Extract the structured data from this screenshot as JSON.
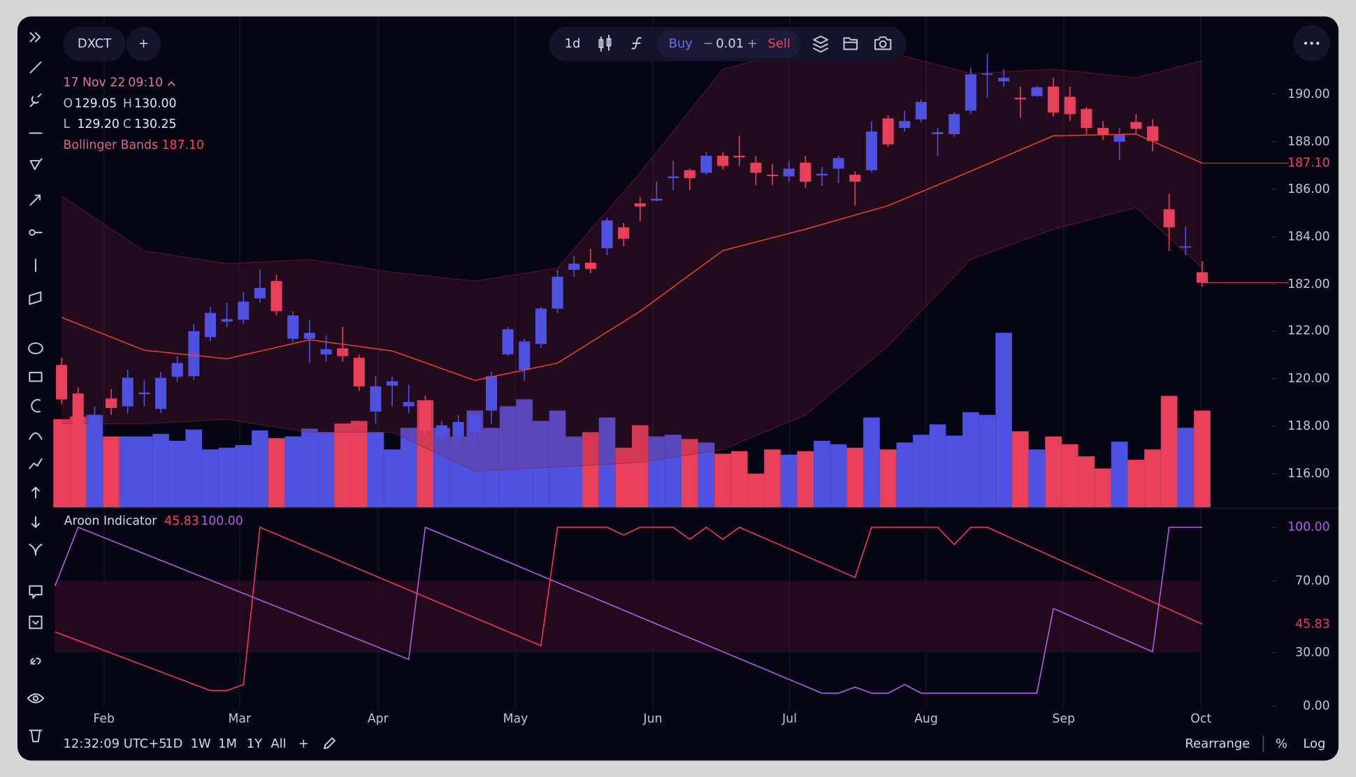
{
  "toolbar": {
    "symbol": "DXCT",
    "add": "+",
    "interval": "1d",
    "buy": "Buy",
    "minus": "−",
    "quantity": "0.01",
    "plus": "+",
    "sell": "Sell"
  },
  "legend": {
    "date": "17 Nov 22",
    "time": "09:10",
    "open_label": "O",
    "open": "129.05",
    "high_label": "H",
    "high": "130.00",
    "low_label": "L",
    "low": "129.20",
    "close_label": "C",
    "close": "130.25"
  },
  "bottom_bar": {
    "clock": "12:32:09 UTC+5",
    "ranges": [
      "1D",
      "1W",
      "1M",
      "1Y",
      "All"
    ],
    "add": "+",
    "rearrange": "Rearrange",
    "percent": "%",
    "log": "Log"
  },
  "chart_data": [
    {
      "type": "candlestick",
      "up_color": "#4f52e0",
      "down_color": "#e8405a",
      "xlim": [
        -0.42,
        73.17
      ],
      "ylim": [
        172.62,
        193.27
      ],
      "yticks": [
        {
          "value": 190,
          "label": "190.00"
        },
        {
          "value": 188,
          "label": "188.00"
        },
        {
          "value": 186,
          "label": "186.00"
        },
        {
          "value": 184,
          "label": "184.00"
        },
        {
          "value": 182,
          "label": "182.00"
        }
      ],
      "y2lim": [
        114.58,
        135.24
      ],
      "y2ticks": [
        {
          "value": 122,
          "label": "122.00"
        },
        {
          "value": 120,
          "label": "120.00"
        },
        {
          "value": 118,
          "label": "118.00"
        },
        {
          "value": 116,
          "label": "116.00"
        }
      ],
      "x": [
        0,
        1,
        2,
        3,
        4,
        5,
        6,
        7,
        8,
        9,
        10,
        11,
        12,
        13,
        14,
        15,
        16,
        17,
        18,
        19,
        20,
        21,
        22,
        23,
        24,
        25,
        26,
        27,
        28,
        29,
        30,
        31,
        32,
        33,
        34,
        35,
        36,
        37,
        38,
        39,
        40,
        41,
        42,
        43,
        44,
        45,
        46,
        47,
        48,
        49,
        50,
        51,
        52,
        53,
        54,
        55,
        56,
        57,
        58,
        59,
        60,
        61,
        62,
        63,
        64,
        65,
        66,
        67,
        68,
        69
      ],
      "open": [
        178.61,
        177.41,
        175.78,
        177.2,
        176.87,
        177.38,
        176.76,
        178.11,
        178.14,
        179.78,
        180.43,
        180.51,
        181.41,
        182.14,
        179.71,
        179.71,
        179.05,
        179.31,
        178.91,
        176.65,
        177.74,
        176.87,
        177.12,
        175.6,
        175.6,
        175.78,
        176.69,
        179.05,
        178.4,
        179.49,
        180.98,
        182.61,
        182.91,
        183.52,
        184.4,
        185.41,
        185.52,
        186.47,
        186.8,
        186.69,
        187.41,
        187.41,
        187.12,
        186.61,
        186.54,
        187.12,
        186.58,
        186.87,
        186.61,
        186.8,
        188.98,
        188.58,
        188.94,
        188.32,
        188.32,
        189.31,
        190.83,
        190.54,
        189.85,
        189.92,
        190.32,
        189.89,
        189.38,
        188.58,
        188.0,
        188.83,
        188.65,
        185.16,
        183.56,
        182.51
      ],
      "high": [
        178.91,
        177.67,
        176.87,
        177.6,
        178.4,
        177.96,
        178.32,
        178.98,
        180.32,
        181.05,
        181.23,
        181.67,
        182.61,
        182.4,
        180.87,
        180.51,
        179.85,
        180.21,
        179.05,
        178.14,
        178.11,
        177.78,
        177.31,
        176.25,
        176.51,
        176.58,
        178.32,
        180.21,
        179.71,
        181.05,
        182.61,
        183.2,
        183.49,
        184.8,
        184.58,
        185.67,
        186.32,
        187.2,
        186.87,
        187.56,
        187.56,
        188.25,
        187.41,
        187.05,
        187.2,
        187.41,
        186.94,
        187.41,
        186.76,
        188.87,
        189.12,
        189.31,
        189.78,
        188.58,
        189.23,
        191.12,
        191.71,
        191.05,
        190.32,
        190.36,
        190.69,
        190.32,
        189.45,
        188.87,
        188.58,
        189.16,
        188.94,
        185.81,
        184.43,
        182.98
      ],
      "low": [
        176.94,
        175.6,
        175.41,
        176.51,
        176.58,
        176.87,
        176.58,
        177.89,
        177.96,
        179.6,
        180.21,
        180.32,
        181.23,
        180.69,
        179.56,
        178.69,
        178.76,
        178.76,
        177.52,
        176.14,
        176.87,
        176.58,
        175.6,
        175.41,
        175.34,
        175.2,
        176.14,
        178.98,
        177.96,
        179.34,
        180.8,
        182.32,
        182.47,
        183.23,
        183.6,
        184.65,
        185.49,
        185.96,
        185.96,
        186.61,
        186.83,
        186.98,
        186.18,
        186.18,
        186.32,
        186.07,
        186.14,
        186.25,
        185.31,
        186.69,
        187.78,
        188.43,
        188.8,
        187.41,
        188.21,
        189.16,
        189.85,
        190.32,
        189.01,
        189.89,
        189.05,
        188.87,
        188.32,
        188.07,
        187.23,
        188.32,
        187.6,
        183.41,
        183.23,
        181.89
      ],
      "close": [
        177.16,
        175.78,
        176.51,
        176.8,
        178.07,
        177.45,
        178.07,
        178.69,
        180.03,
        180.8,
        180.54,
        181.27,
        181.85,
        180.87,
        180.69,
        179.96,
        179.27,
        178.98,
        177.71,
        177.71,
        177.92,
        177.05,
        175.85,
        176.07,
        176.21,
        176.51,
        178.14,
        180.11,
        179.6,
        180.98,
        182.32,
        182.87,
        182.65,
        184.69,
        183.92,
        185.27,
        185.6,
        186.54,
        186.47,
        187.41,
        186.98,
        187.34,
        186.69,
        186.58,
        186.87,
        186.32,
        186.65,
        187.31,
        186.32,
        188.43,
        187.89,
        188.87,
        189.67,
        188.4,
        189.16,
        190.83,
        190.87,
        190.69,
        189.78,
        190.29,
        189.23,
        189.16,
        188.58,
        188.29,
        188.32,
        188.54,
        188.03,
        184.4,
        183.6,
        182.07
      ],
      "volume": [
        102,
        105,
        107,
        82,
        82,
        82,
        85,
        77,
        90,
        67,
        69,
        72,
        89,
        80,
        82,
        91,
        87,
        97,
        100,
        87,
        67,
        92,
        124,
        92,
        82,
        112,
        92,
        117,
        125,
        100,
        112,
        82,
        87,
        104,
        69,
        95,
        82,
        84,
        79,
        75,
        62,
        65,
        39,
        67,
        61,
        65,
        77,
        73,
        69,
        104,
        67,
        75,
        84,
        96,
        83,
        110,
        107,
        202,
        88,
        67,
        82,
        73,
        59,
        45,
        76,
        55,
        67,
        129,
        92,
        112
      ],
      "bollinger": {
        "name": "Bollinger Bands",
        "color": "#f0402e",
        "band_color": "#8a1e3c",
        "x": [
          0,
          5,
          10,
          15,
          20,
          25,
          30,
          35,
          40,
          45,
          50,
          55,
          60,
          65,
          69
        ],
        "upper": [
          185.71,
          183.41,
          182.87,
          183.05,
          182.51,
          182.14,
          182.69,
          186.69,
          191.05,
          191.96,
          191.78,
          190.87,
          191.05,
          190.69,
          191.41
        ],
        "values": [
          180.61,
          179.23,
          178.87,
          179.67,
          179.2,
          177.96,
          178.69,
          180.87,
          183.42,
          184.32,
          185.31,
          186.76,
          188.25,
          188.32,
          187.1
        ],
        "value_labels": [
          null,
          null,
          null,
          null,
          null,
          null,
          null,
          null,
          null,
          null,
          null,
          null,
          null,
          null,
          "187.10"
        ],
        "lower": [
          176.14,
          176.14,
          176.32,
          175.78,
          175.78,
          174.14,
          174.32,
          174.51,
          175.05,
          176.51,
          179.41,
          183.05,
          184.32,
          185.23,
          182.69
        ]
      }
    },
    {
      "type": "line",
      "title": "Aroon Indicator",
      "xlim": [
        -0.42,
        73.17
      ],
      "xticks": [
        {
          "value": 2.56,
          "label": "Feb"
        },
        {
          "value": 10.77,
          "label": "Mar"
        },
        {
          "value": 19.14,
          "label": "Apr"
        },
        {
          "value": 27.46,
          "label": "May"
        },
        {
          "value": 35.77,
          "label": "Jun"
        },
        {
          "value": 44.04,
          "label": "Jul"
        },
        {
          "value": 52.3,
          "label": "Aug"
        },
        {
          "value": 60.62,
          "label": "Sep"
        },
        {
          "value": 68.93,
          "label": "Oct"
        }
      ],
      "ylim": [
        -1.45,
        109.7
      ],
      "yticks": [
        {
          "value": 100,
          "label": "100.00"
        },
        {
          "value": 70,
          "label": "70.00"
        },
        {
          "value": 30,
          "label": "30.00"
        },
        {
          "value": 0,
          "label": "0.00"
        }
      ],
      "band": [
        30,
        70
      ],
      "series": [
        {
          "color": "#b65ae6",
          "x": [
            -0.4,
            1,
            21,
            22,
            46,
            47,
            48,
            49,
            50,
            51,
            52,
            59,
            60,
            66,
            67,
            69
          ],
          "values": [
            67.15,
            100,
            26.09,
            100,
            7.25,
            7.25,
            10.63,
            7.25,
            7.25,
            12.08,
            7.25,
            7.25,
            54.59,
            30.43,
            100,
            100
          ],
          "value_labels": [
            null,
            null,
            null,
            null,
            null,
            null,
            null,
            null,
            null,
            null,
            null,
            null,
            null,
            null,
            null,
            "100.00"
          ]
        },
        {
          "color": "#f0365a",
          "x": [
            -0.4,
            9,
            10,
            11,
            12,
            29,
            30,
            33,
            34,
            35,
            37,
            38,
            39,
            40,
            41,
            48,
            49,
            53,
            54,
            55,
            56,
            69
          ],
          "values": [
            41.55,
            8.7,
            8.7,
            12.08,
            100,
            33.82,
            100,
            100,
            95.65,
            100,
            100,
            93.24,
            100,
            93.24,
            100,
            71.98,
            100,
            100,
            90.34,
            100,
            100,
            45.83
          ]
        }
      ]
    }
  ]
}
